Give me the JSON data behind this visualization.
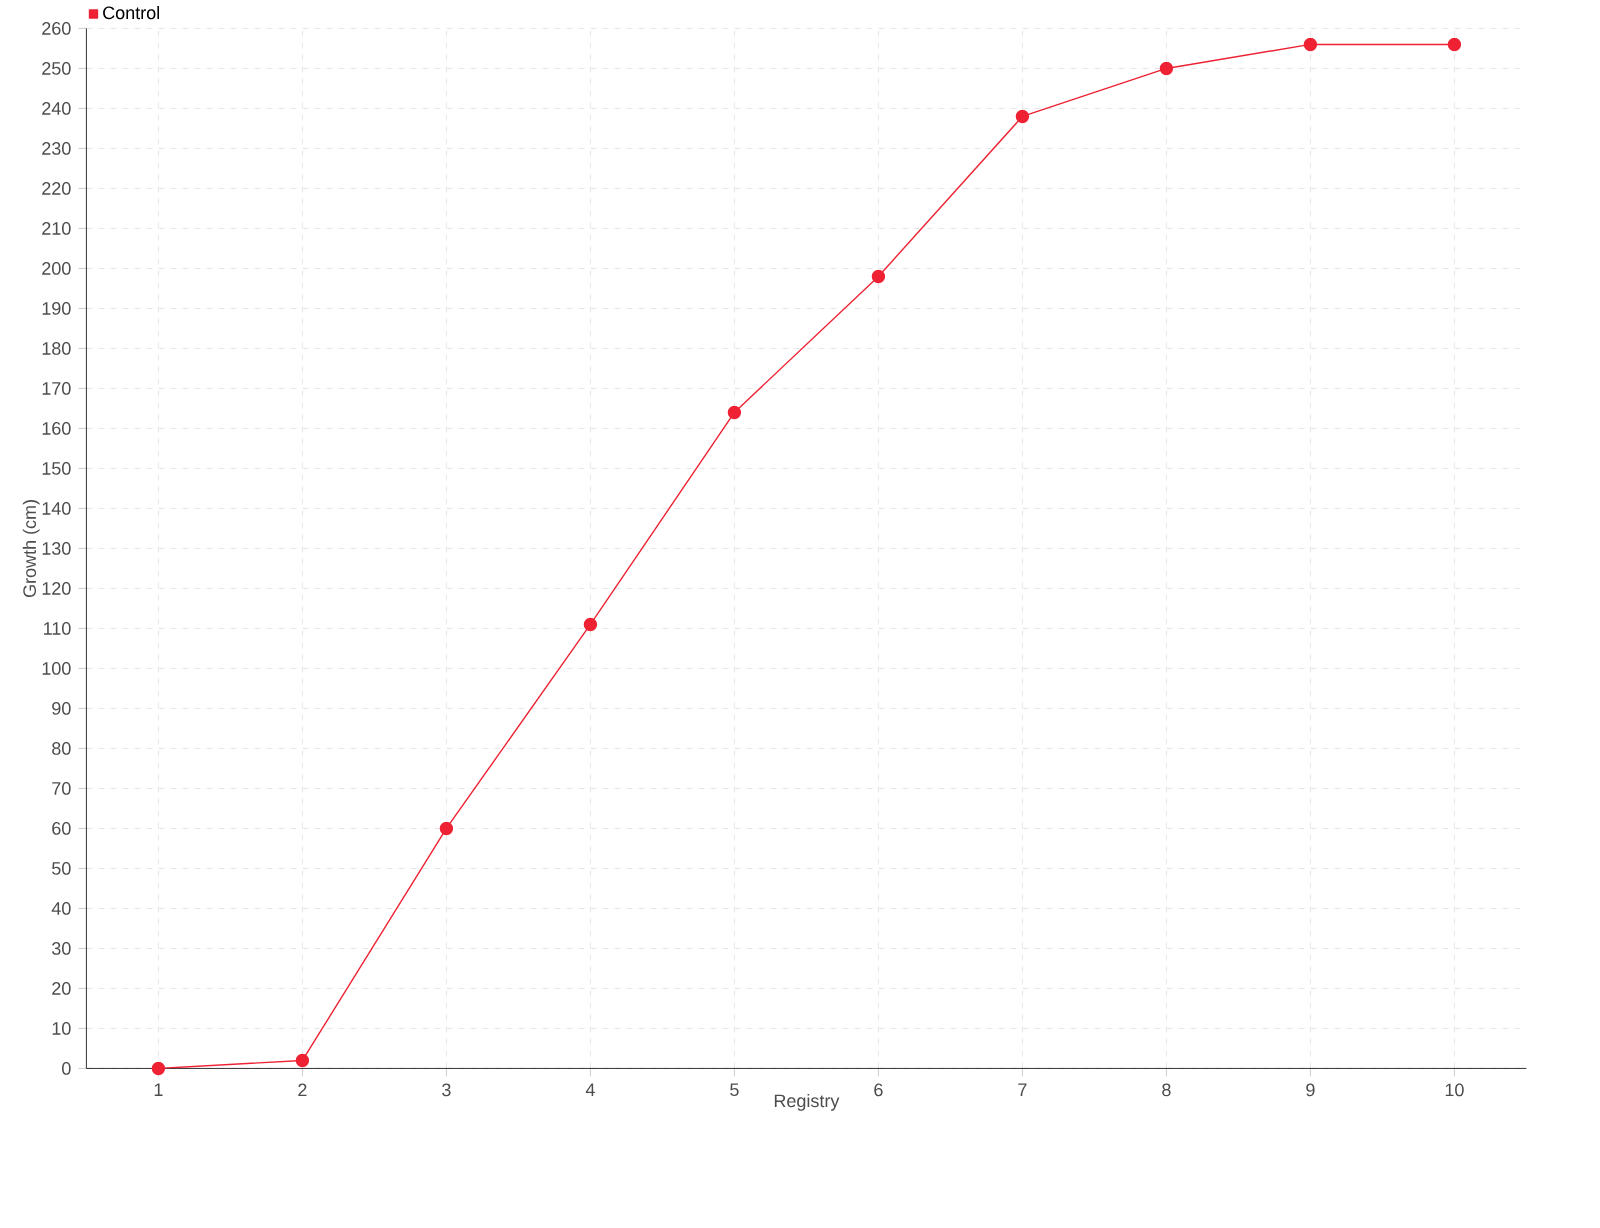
{
  "chart_data": {
    "type": "line",
    "xlabel": "Registry",
    "ylabel": "Growth (cm)",
    "categories": [
      "1",
      "2",
      "3",
      "4",
      "5",
      "6",
      "7",
      "8",
      "9",
      "10"
    ],
    "series": [
      {
        "name": "Control",
        "color": "#ee2233",
        "values": [
          0,
          2,
          60,
          111,
          164,
          198,
          238,
          250,
          256,
          256
        ]
      }
    ],
    "ylim": [
      0,
      260
    ],
    "yticks": [
      0,
      10,
      20,
      30,
      40,
      50,
      60,
      70,
      80,
      90,
      100,
      110,
      120,
      130,
      140,
      150,
      160,
      170,
      180,
      190,
      200,
      210,
      220,
      230,
      240,
      250,
      260
    ],
    "grid": true,
    "legend": "top left",
    "marker": "circle",
    "line_style": "solid"
  }
}
